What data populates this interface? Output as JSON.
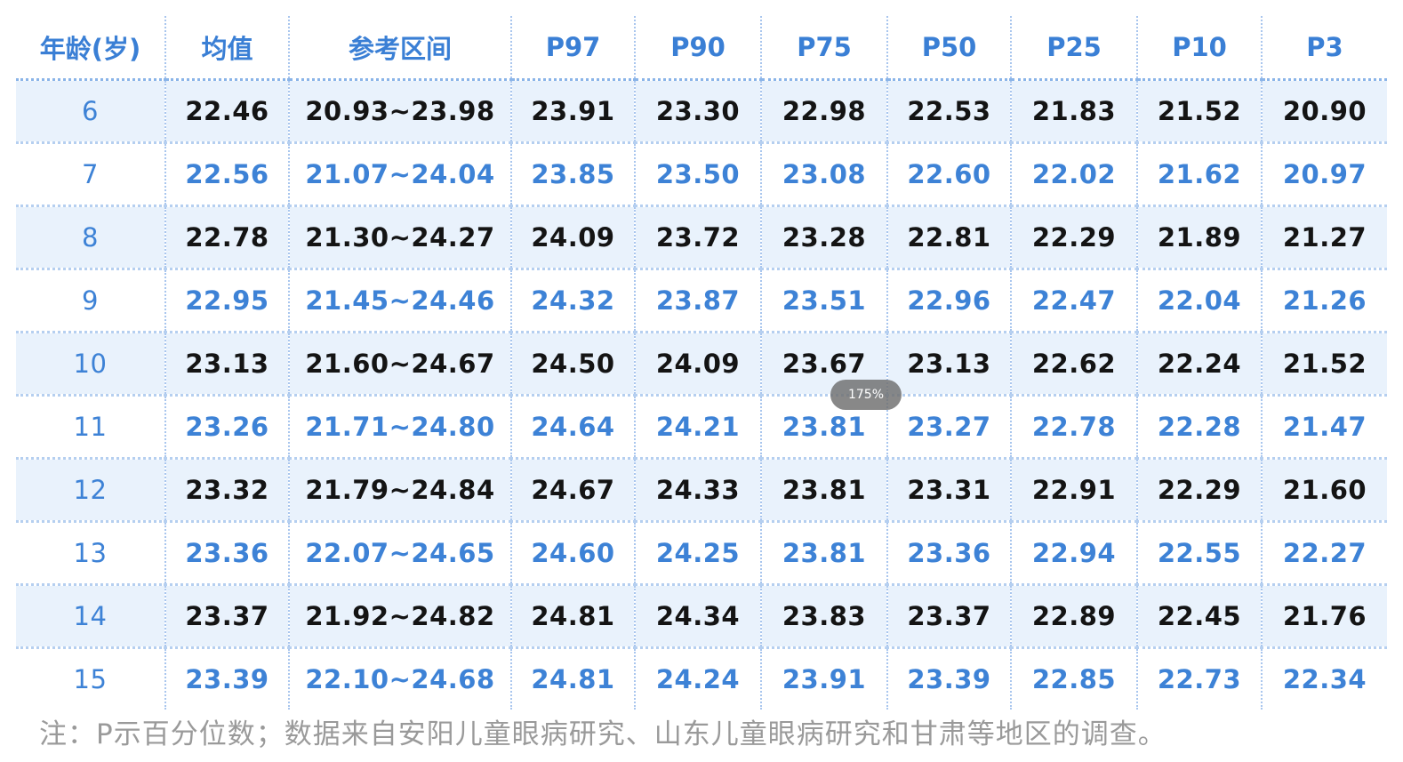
{
  "table": {
    "headers": [
      "年龄(岁)",
      "均值",
      "参考区间",
      "P97",
      "P90",
      "P75",
      "P50",
      "P25",
      "P10",
      "P3"
    ],
    "rows": [
      [
        "6",
        "22.46",
        "20.93~23.98",
        "23.91",
        "23.30",
        "22.98",
        "22.53",
        "21.83",
        "21.52",
        "20.90"
      ],
      [
        "7",
        "22.56",
        "21.07~24.04",
        "23.85",
        "23.50",
        "23.08",
        "22.60",
        "22.02",
        "21.62",
        "20.97"
      ],
      [
        "8",
        "22.78",
        "21.30~24.27",
        "24.09",
        "23.72",
        "23.28",
        "22.81",
        "22.29",
        "21.89",
        "21.27"
      ],
      [
        "9",
        "22.95",
        "21.45~24.46",
        "24.32",
        "23.87",
        "23.51",
        "22.96",
        "22.47",
        "22.04",
        "21.26"
      ],
      [
        "10",
        "23.13",
        "21.60~24.67",
        "24.50",
        "24.09",
        "23.67",
        "23.13",
        "22.62",
        "22.24",
        "21.52"
      ],
      [
        "11",
        "23.26",
        "21.71~24.80",
        "24.64",
        "24.21",
        "23.81",
        "23.27",
        "22.78",
        "22.28",
        "21.47"
      ],
      [
        "12",
        "23.32",
        "21.79~24.84",
        "24.67",
        "24.33",
        "23.81",
        "23.31",
        "22.91",
        "22.29",
        "21.60"
      ],
      [
        "13",
        "23.36",
        "22.07~24.65",
        "24.60",
        "24.25",
        "23.81",
        "23.36",
        "22.94",
        "22.55",
        "22.27"
      ],
      [
        "14",
        "23.37",
        "21.92~24.82",
        "24.81",
        "24.34",
        "23.83",
        "23.37",
        "22.89",
        "22.45",
        "21.76"
      ],
      [
        "15",
        "23.39",
        "22.10~24.68",
        "24.81",
        "24.24",
        "23.91",
        "23.39",
        "22.85",
        "22.73",
        "22.34"
      ]
    ]
  },
  "note": "注：P示百分位数；数据来自安阳儿童眼病研究、山东儿童眼病研究和甘肃等地区的调查。",
  "zoom_badge": "175%",
  "colors": {
    "header_text": "#3a7fd5",
    "accent_text": "#3d82d6",
    "band_background": "#e9f2fc",
    "dark_text": "#141414",
    "note_text": "#9a9a9a"
  }
}
